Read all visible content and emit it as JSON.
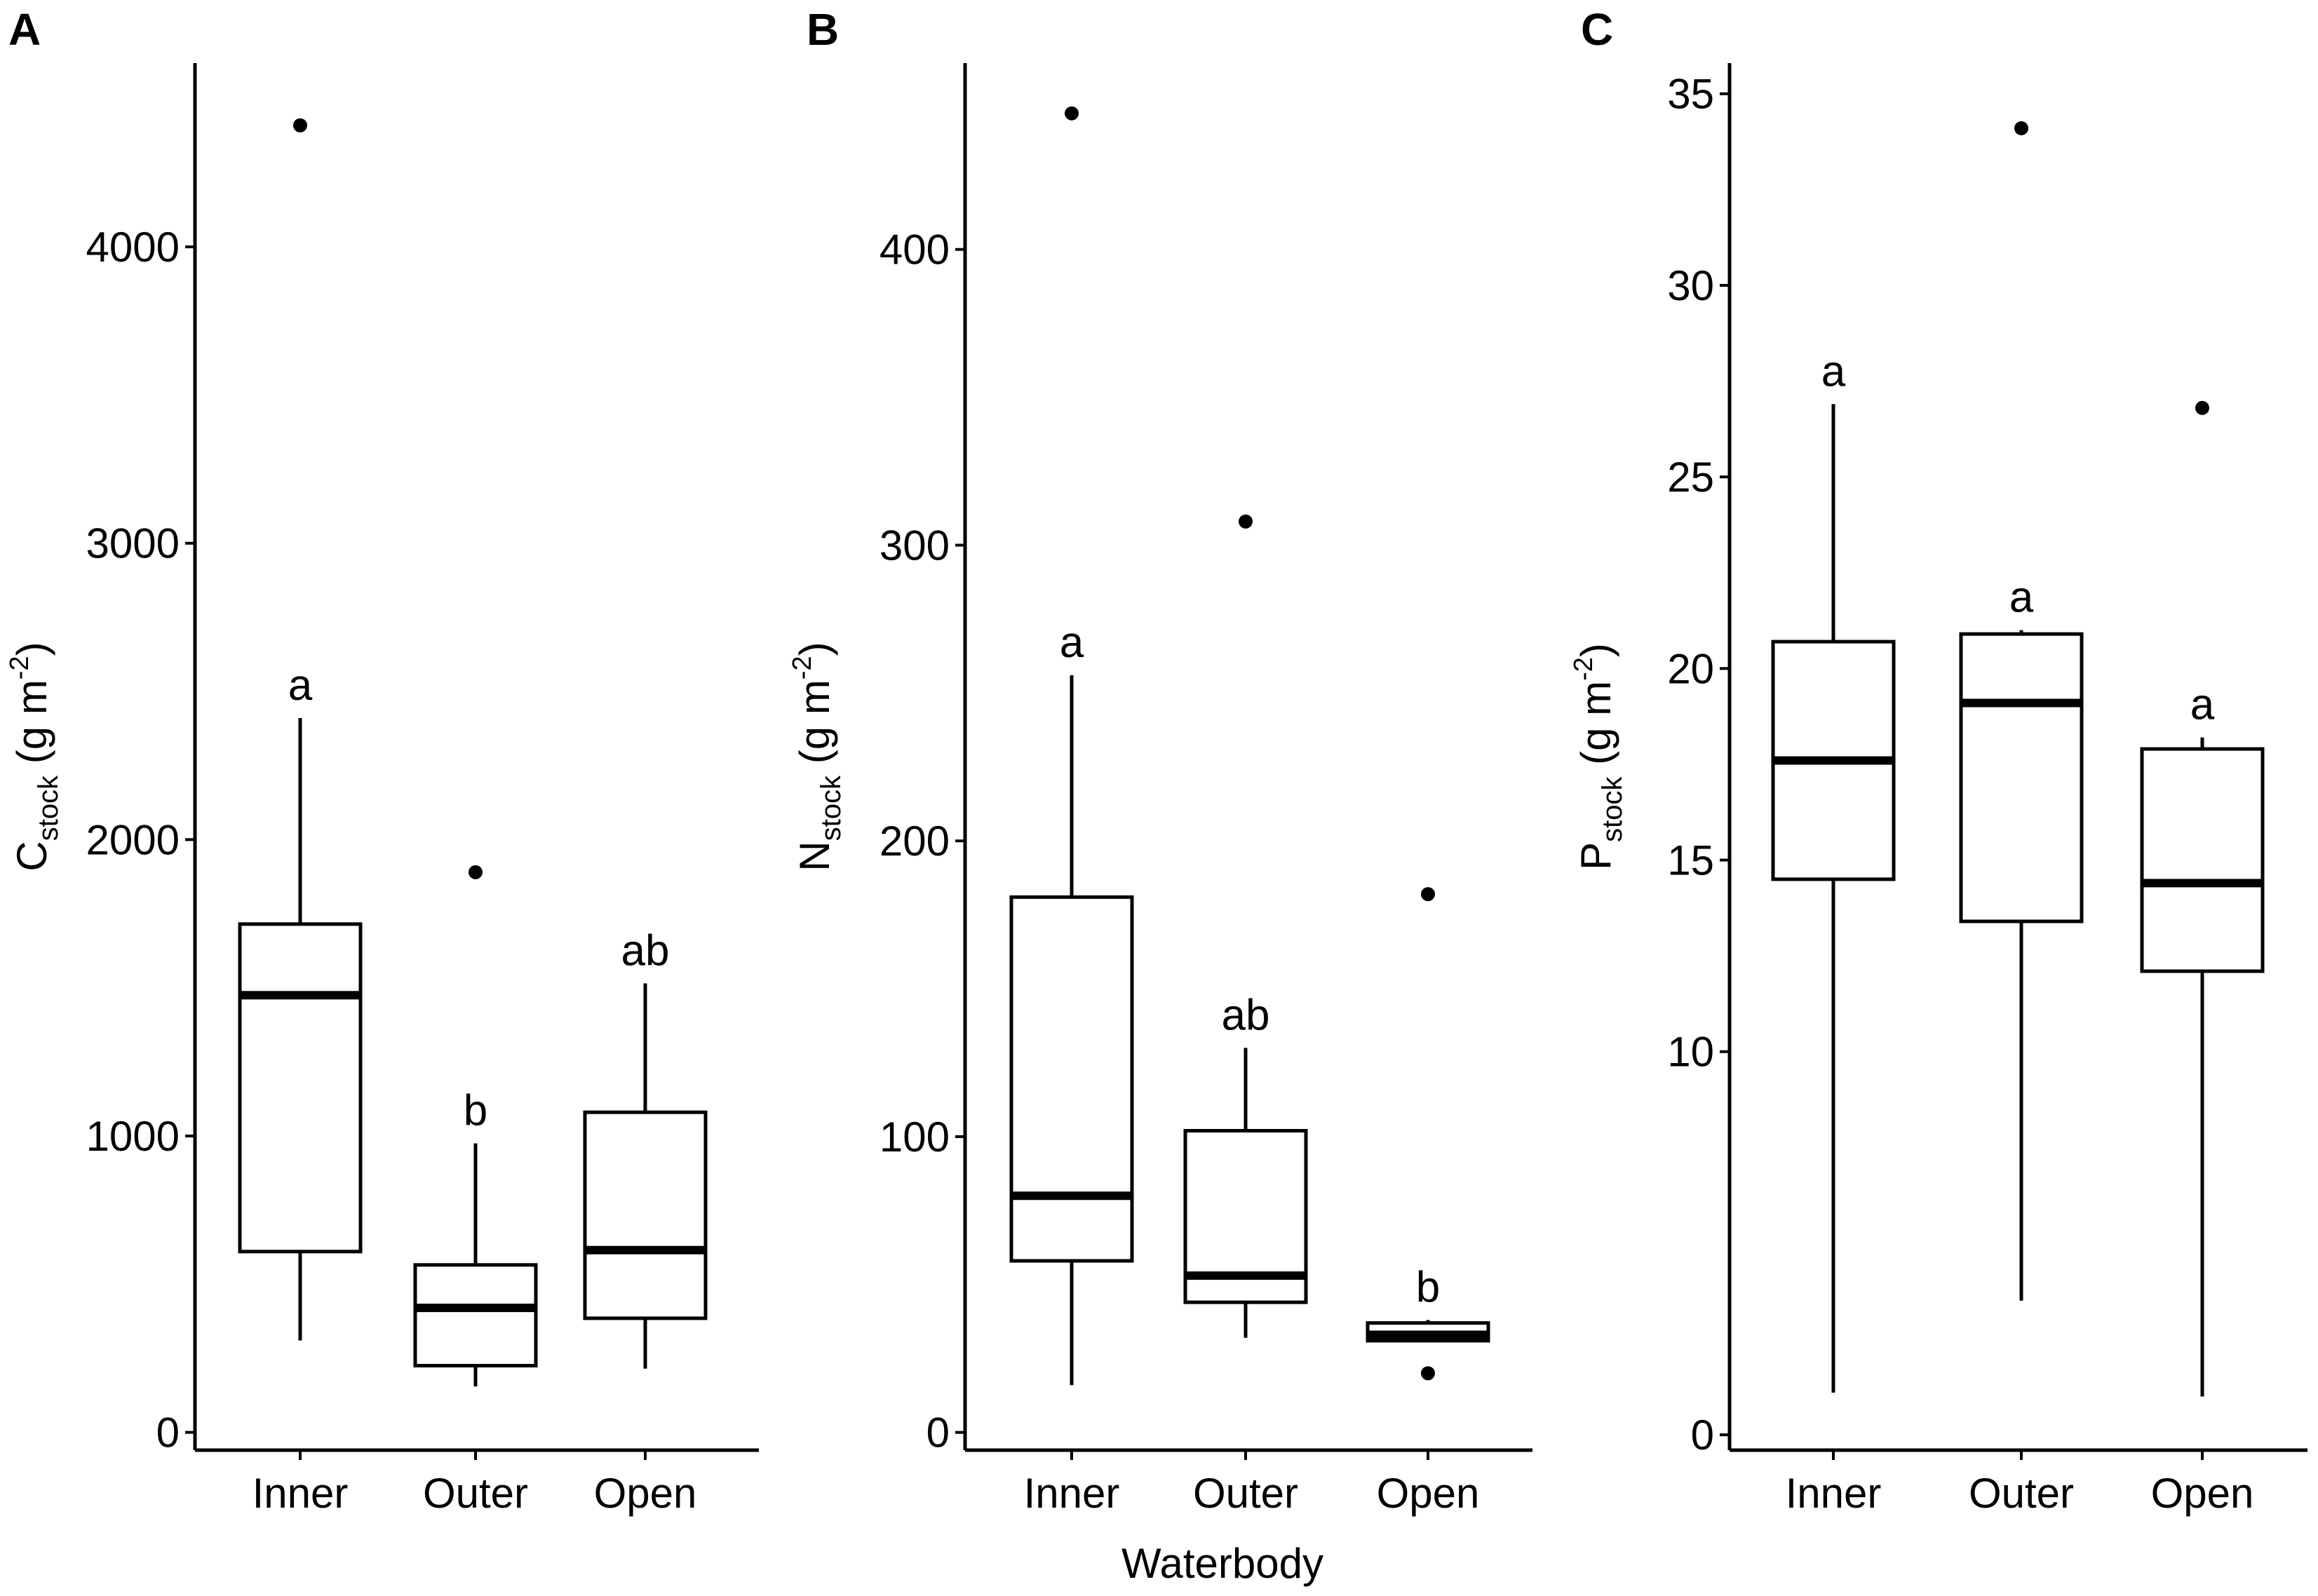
{
  "figure": {
    "shared_xlabel": "Waterbody",
    "stroke_color": "#000000",
    "background_color": "#ffffff"
  },
  "chart_data": [
    {
      "type": "boxplot",
      "panel": "A",
      "ylabel": {
        "main": "C",
        "sub": "stock",
        "unit_pre": " (g m",
        "unit_sup": "-2",
        "unit_post": ")"
      },
      "categories": [
        "Inner",
        "Outer",
        "Open"
      ],
      "ylim": [
        -60,
        4620
      ],
      "yticks": [
        0,
        1000,
        2000,
        3000,
        4000
      ],
      "boxes": [
        {
          "category": "Inner",
          "whisker_low": 310,
          "q1": 610,
          "median": 1475,
          "q3": 1715,
          "whisker_high": 2410,
          "outliers": [
            4410
          ],
          "significance": "a"
        },
        {
          "category": "Outer",
          "whisker_low": 155,
          "q1": 225,
          "median": 420,
          "q3": 565,
          "whisker_high": 975,
          "outliers": [
            1890
          ],
          "significance": "b"
        },
        {
          "category": "Open",
          "whisker_low": 215,
          "q1": 385,
          "median": 615,
          "q3": 1080,
          "whisker_high": 1515,
          "outliers": [],
          "significance": "ab"
        }
      ]
    },
    {
      "type": "boxplot",
      "panel": "B",
      "ylabel": {
        "main": "N",
        "sub": "stock",
        "unit_pre": " (g m",
        "unit_sup": "-2",
        "unit_post": ")"
      },
      "categories": [
        "Inner",
        "Outer",
        "Open"
      ],
      "ylim": [
        -6,
        463
      ],
      "yticks": [
        0,
        100,
        200,
        300,
        400
      ],
      "boxes": [
        {
          "category": "Inner",
          "whisker_low": 16,
          "q1": 58,
          "median": 80,
          "q3": 181,
          "whisker_high": 256,
          "outliers": [
            446
          ],
          "significance": "a"
        },
        {
          "category": "Outer",
          "whisker_low": 32,
          "q1": 44,
          "median": 53,
          "q3": 102,
          "whisker_high": 130,
          "outliers": [
            308
          ],
          "significance": "ab"
        },
        {
          "category": "Open",
          "whisker_low": 31,
          "q1": 31,
          "median": 33,
          "q3": 37,
          "whisker_high": 38,
          "outliers": [
            182,
            20
          ],
          "significance": "b"
        }
      ]
    },
    {
      "type": "boxplot",
      "panel": "C",
      "ylabel": {
        "main": "P",
        "sub": "stock",
        "unit_pre": " (g m",
        "unit_sup": "-2",
        "unit_post": ")"
      },
      "categories": [
        "Inner",
        "Outer",
        "Open"
      ],
      "ylim": [
        -0.4,
        35.8
      ],
      "yticks": [
        0,
        10,
        15,
        20,
        25,
        30,
        35
      ],
      "ytick_labels": [
        "0",
        "10",
        "15",
        "20",
        "25",
        "30",
        "35"
      ],
      "boxes": [
        {
          "category": "Inner",
          "whisker_low": 1.1,
          "q1": 14.5,
          "median": 17.6,
          "q3": 20.7,
          "whisker_high": 26.9,
          "outliers": [],
          "significance": "a"
        },
        {
          "category": "Outer",
          "whisker_low": 3.5,
          "q1": 13.4,
          "median": 19.1,
          "q3": 20.9,
          "whisker_high": 21.0,
          "outliers": [
            34.1
          ],
          "significance": "a"
        },
        {
          "category": "Open",
          "whisker_low": 1.0,
          "q1": 12.1,
          "median": 14.4,
          "q3": 17.9,
          "whisker_high": 18.2,
          "outliers": [
            26.8
          ],
          "significance": "a"
        }
      ]
    }
  ]
}
